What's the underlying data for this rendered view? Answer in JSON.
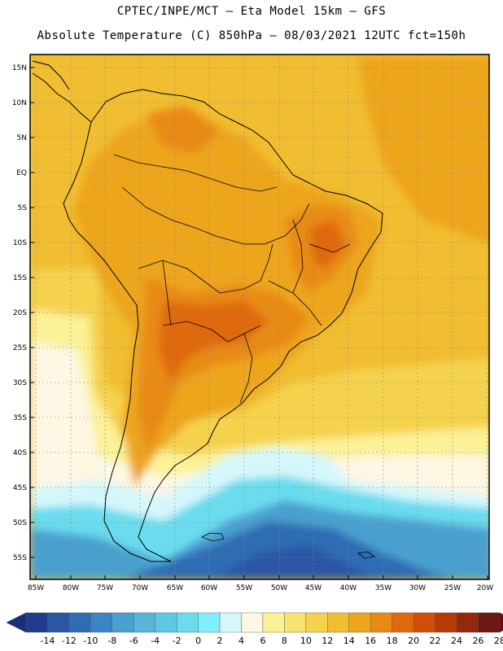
{
  "header": {
    "line1": "CPTEC/INPE/MCT  –  Eta Model 15km – GFS",
    "line2": "Absolute Temperature (C) 850hPa – 08/03/2021 12UTC fct=150h"
  },
  "map": {
    "lat_labels": [
      "15N",
      "10N",
      "5N",
      "EQ",
      "5S",
      "10S",
      "15S",
      "20S",
      "25S",
      "30S",
      "35S",
      "40S",
      "45S",
      "50S",
      "55S"
    ],
    "lon_labels": [
      "85W",
      "80W",
      "75W",
      "70W",
      "65W",
      "60W",
      "55W",
      "50W",
      "45W",
      "40W",
      "35W",
      "30W",
      "25W",
      "20W"
    ]
  },
  "colorbar": {
    "labels": [
      "-14",
      "-12",
      "-10",
      "-8",
      "-6",
      "-4",
      "-2",
      "0",
      "2",
      "4",
      "6",
      "8",
      "10",
      "12",
      "14",
      "16",
      "18",
      "20",
      "22",
      "24",
      "26",
      "28"
    ],
    "colors": [
      "#1f3d8c",
      "#2a56a4",
      "#2f6cb3",
      "#3a86c2",
      "#4aa0cf",
      "#56b5d9",
      "#5ec8e2",
      "#6bdcee",
      "#7ff0fb",
      "#d5f7fb",
      "#fdf7e3",
      "#fbf196",
      "#f7e46e",
      "#f5d24e",
      "#f1bd31",
      "#eda51d",
      "#e88a12",
      "#df690c",
      "#d04f08",
      "#b73a06",
      "#94280b",
      "#6d1810"
    ],
    "under_color": "#1a2f7a",
    "over_color": "#6a0a1a"
  }
}
